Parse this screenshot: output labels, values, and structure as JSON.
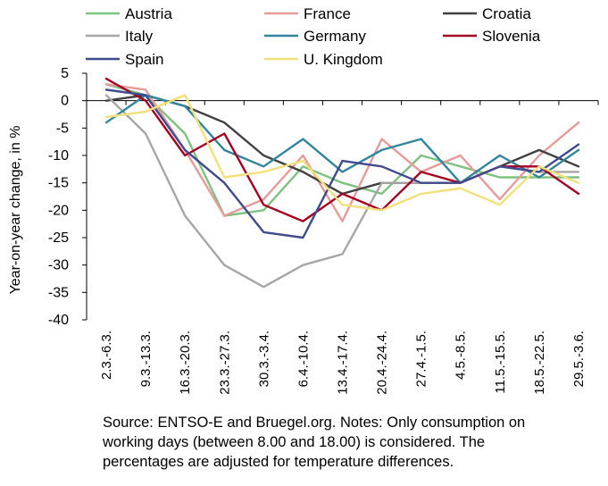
{
  "chart_data": {
    "type": "line",
    "categories": [
      "2.3.-6.3.",
      "9.3.-13.3.",
      "16.3.-20.3.",
      "23.3.-27.3.",
      "30.3.-3.4.",
      "6.4.-10.4.",
      "13.4.-17.4.",
      "20.4.-24.4.",
      "27.4.-1.5.",
      "4.5.-8.5.",
      "11.5.-15.5.",
      "18.5.-22.5.",
      "29.5.-3.6."
    ],
    "ylabel": "Year-on-year change, in %",
    "xlabel": "",
    "ylim": [
      -40,
      5
    ],
    "yticks": [
      5,
      0,
      -5,
      -10,
      -15,
      -20,
      -25,
      -30,
      -35,
      -40
    ],
    "grid": false,
    "legend_position": "top",
    "series": [
      {
        "name": "Austria",
        "color": "#7dc27f",
        "values": [
          3,
          1,
          -6,
          -21,
          -20,
          -12,
          -15,
          -17,
          -10,
          -12,
          -14,
          -14,
          -14
        ]
      },
      {
        "name": "France",
        "color": "#e89a9a",
        "values": [
          3,
          2,
          -9,
          -21,
          -18,
          -10,
          -22,
          -7,
          -13,
          -10,
          -18,
          -10,
          -4
        ]
      },
      {
        "name": "Croatia",
        "color": "#404040",
        "values": [
          0,
          1,
          -1,
          -4,
          -10,
          -13,
          -17,
          -15,
          -15,
          -15,
          -12,
          -9,
          -12
        ]
      },
      {
        "name": "Italy",
        "color": "#a6a6a6",
        "values": [
          1,
          -6,
          -21,
          -30,
          -34,
          -30,
          -28,
          -15,
          -15,
          -15,
          -12,
          -13,
          -13
        ]
      },
      {
        "name": "Germany",
        "color": "#31859c",
        "values": [
          -4,
          1,
          -1,
          -9,
          -12,
          -7,
          -13,
          -9,
          -7,
          -15,
          -10,
          -14,
          -9
        ]
      },
      {
        "name": "Slovenia",
        "color": "#a50021",
        "values": [
          4,
          0,
          -10,
          -6,
          -19,
          -22,
          -17,
          -20,
          -13,
          -15,
          -12,
          -12,
          -17
        ]
      },
      {
        "name": "Spain",
        "color": "#3f4b8c",
        "values": [
          2,
          1,
          -9,
          -15,
          -24,
          -25,
          -11,
          -12,
          -15,
          -15,
          -12,
          -13,
          -8
        ]
      },
      {
        "name": "U. Kingdom",
        "color": "#f2e07a",
        "values": [
          -3,
          -2,
          1,
          -14,
          -13,
          -11,
          -19,
          -20,
          -17,
          -16,
          -19,
          -12,
          -15
        ]
      }
    ]
  },
  "note": {
    "line1": "Source: ENTSO-E and Bruegel.org. Notes: Only consumption on",
    "line2": "working days (between 8.00 and 18.00) is considered. The",
    "line3": "percentages are adjusted for temperature differences."
  }
}
